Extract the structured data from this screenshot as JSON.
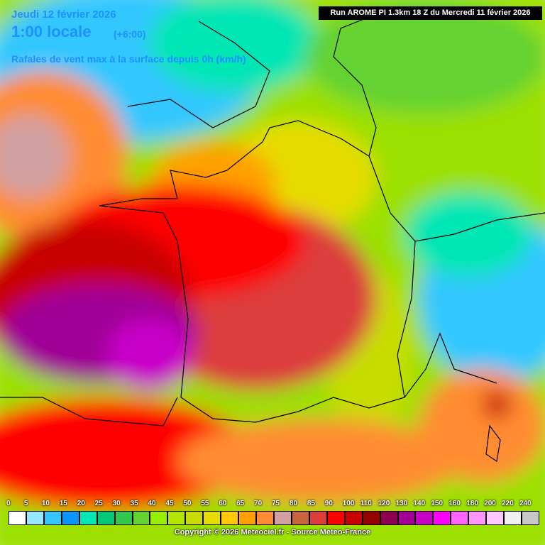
{
  "header": {
    "date": "Jeudi 12 février 2026",
    "time": "1:00 locale",
    "offset": "(+6:00)",
    "parameter": "Rafales de vent max à la surface depuis 0h (km/h)",
    "run": "Run AROME PI 1.3km 18 Z du Mercredi 11 février 2026"
  },
  "legend": {
    "labels": [
      "0",
      "5",
      "10",
      "15",
      "20",
      "25",
      "30",
      "35",
      "40",
      "45",
      "50",
      "55",
      "60",
      "65",
      "70",
      "75",
      "80",
      "85",
      "90",
      "100",
      "110",
      "120",
      "130",
      "140",
      "150",
      "160",
      "180",
      "200",
      "220",
      "240"
    ],
    "colors": [
      "#ffffff",
      "#96e6ff",
      "#32c8ff",
      "#0a96ff",
      "#00e6b4",
      "#00c878",
      "#32c850",
      "#64d232",
      "#96f000",
      "#b4e600",
      "#c8dc00",
      "#e6dc00",
      "#ffc800",
      "#ffa000",
      "#ff8c32",
      "#d2a0a0",
      "#c86440",
      "#dc3c3c",
      "#ff0000",
      "#c80000",
      "#960000",
      "#8c0050",
      "#a00096",
      "#c800c8",
      "#ff00ff",
      "#ff64ff",
      "#ff96ff",
      "#ffc8ff",
      "#f0f0f0",
      "#c8c8c8"
    ]
  },
  "footer": {
    "copyright": "Copyright © 2026 Meteociel.fr - Source Meteo-France"
  }
}
